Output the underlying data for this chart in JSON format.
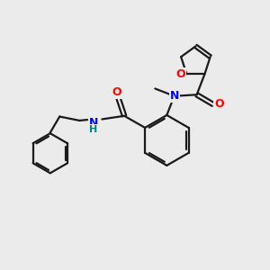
{
  "bg_color": "#ebebeb",
  "bond_color": "#1a1a1a",
  "nitrogen_color": "#0000ff",
  "oxygen_color": "#ff0000",
  "nh_color": "#008080",
  "line_width": 1.6,
  "figsize": [
    3.0,
    3.0
  ],
  "dpi": 100,
  "xlim": [
    0,
    10
  ],
  "ylim": [
    0,
    10
  ]
}
